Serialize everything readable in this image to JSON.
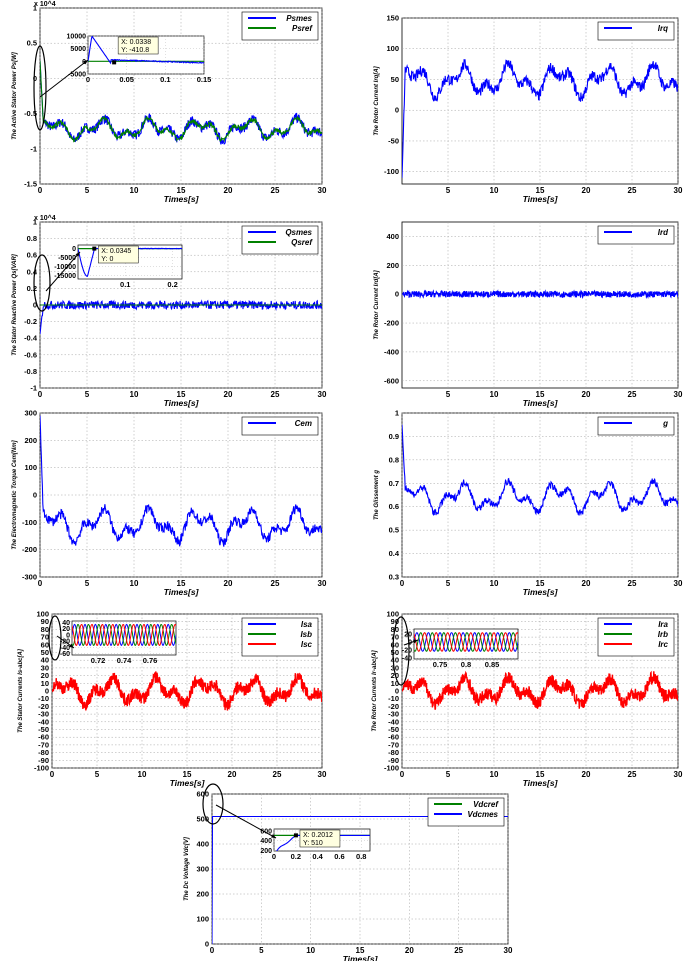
{
  "chart_data": [
    {
      "id": "p1",
      "type": "line",
      "ylabel": "The Active Stator Power Ps[W]",
      "xlabel": "Times[s]",
      "xlim": [
        0,
        30
      ],
      "ylim": [
        -1.5,
        1
      ],
      "xticks": [
        "0",
        "5",
        "10",
        "15",
        "20",
        "25",
        "30"
      ],
      "yticks": [
        "-1.5",
        "-1",
        "-0.5",
        "0",
        "0.5",
        "1"
      ],
      "exponent": "x 10^4",
      "grid": true,
      "legend_position": "top-right",
      "series": [
        {
          "name": "Psmes",
          "color": "#0000ff",
          "base": -0.72,
          "amp": 0.16,
          "period": 5.2,
          "noise": 0.07,
          "start": 0.25
        },
        {
          "name": "Psref",
          "color": "#008000",
          "base": -0.72,
          "amp": 0.16,
          "period": 5.2,
          "noise": 0.03,
          "start": 0.25
        }
      ],
      "inset": {
        "xlim": [
          0,
          0.15
        ],
        "ylim": [
          -5000,
          10000
        ],
        "xticks": [
          "0",
          "0.05",
          "0.1",
          "0.15"
        ],
        "yticks": [
          "-5000",
          "0",
          "5000",
          "10000"
        ],
        "datatip": [
          "X: 0.0338",
          "Y: -410.8"
        ],
        "tip_x": 0.0338,
        "tip_y": -410.8,
        "kind": "spike-decay"
      }
    },
    {
      "id": "p2",
      "type": "line",
      "ylabel": "The Rotor Current Irq[A]",
      "xlabel": "Times[s]",
      "xlim": [
        0,
        30
      ],
      "ylim": [
        -120,
        150
      ],
      "xticks": [
        "5",
        "10",
        "15",
        "20",
        "25",
        "30"
      ],
      "yticks": [
        "-100",
        "-50",
        "0",
        "50",
        "100",
        "150"
      ],
      "grid": true,
      "legend_position": "top-right",
      "series": [
        {
          "name": "Irq",
          "color": "#0000ff",
          "base": 48,
          "amp": 28,
          "period": 5.2,
          "noise": 9,
          "start": -110
        }
      ]
    },
    {
      "id": "p3",
      "type": "line",
      "ylabel": "The Stator Reactive Power Qs[VAR]",
      "xlabel": "Times[s]",
      "xlim": [
        0,
        30
      ],
      "ylim": [
        -1,
        1
      ],
      "xticks": [
        "0",
        "5",
        "10",
        "15",
        "20",
        "25",
        "30"
      ],
      "yticks": [
        "-1",
        "-0.8",
        "-0.6",
        "-0.4",
        "-0.2",
        "0",
        "0.2",
        "0.4",
        "0.6",
        "0.8",
        "1"
      ],
      "exponent": "x 10^4",
      "grid": true,
      "legend_position": "top-right",
      "series": [
        {
          "name": "Qsmes",
          "color": "#0000ff",
          "base": 0.0,
          "amp": 0.0,
          "period": 5,
          "noise": 0.05,
          "start": -0.35
        },
        {
          "name": "Qsref",
          "color": "#008000",
          "base": 0.0,
          "amp": 0.0,
          "period": 5,
          "noise": 0.0,
          "start": 0.0
        }
      ],
      "inset": {
        "xlim": [
          0,
          0.22
        ],
        "ylim": [
          -17000,
          2000
        ],
        "xticks": [
          "0.1",
          "0.2"
        ],
        "yticks": [
          "0",
          "-5000",
          "-10000",
          "-15000"
        ],
        "datatip": [
          "X: 0.0345",
          "Y: 0"
        ],
        "tip_x": 0.0345,
        "tip_y": 0,
        "kind": "dip-recover"
      }
    },
    {
      "id": "p4",
      "type": "line",
      "ylabel": "The Rotor Current Ird[A]",
      "xlabel": "Times[s]",
      "xlim": [
        0,
        30
      ],
      "ylim": [
        -650,
        500
      ],
      "xticks": [
        "5",
        "10",
        "15",
        "20",
        "25",
        "30"
      ],
      "yticks": [
        "-600",
        "-400",
        "-200",
        "0",
        "200",
        "400"
      ],
      "grid": true,
      "legend_position": "top-right",
      "series": [
        {
          "name": "Ird",
          "color": "#0000ff",
          "base": 0,
          "amp": 0,
          "period": 5,
          "noise": 22,
          "start": 0
        }
      ]
    },
    {
      "id": "p5",
      "type": "line",
      "ylabel": "The Electromagnetic Torque Cem[Nm]",
      "xlabel": "Times[s]",
      "xlim": [
        0,
        30
      ],
      "ylim": [
        -300,
        300
      ],
      "xticks": [
        "0",
        "5",
        "10",
        "15",
        "20",
        "25",
        "30"
      ],
      "yticks": [
        "-300",
        "-200",
        "-100",
        "0",
        "100",
        "200",
        "300"
      ],
      "grid": true,
      "legend_position": "top-right",
      "series": [
        {
          "name": "Cem",
          "color": "#0000ff",
          "base": -110,
          "amp": 65,
          "period": 5.2,
          "noise": 18,
          "start": 290
        }
      ]
    },
    {
      "id": "p6",
      "type": "line",
      "ylabel": "The Glissement g",
      "xlabel": "Times[s]",
      "xlim": [
        0,
        30
      ],
      "ylim": [
        0.3,
        1
      ],
      "xticks": [
        "0",
        "5",
        "10",
        "15",
        "20",
        "25",
        "30"
      ],
      "yticks": [
        "0.3",
        "0.4",
        "0.5",
        "0.6",
        "0.7",
        "0.8",
        "0.9",
        "1"
      ],
      "grid": true,
      "legend_position": "top-right",
      "series": [
        {
          "name": "g",
          "color": "#0000ff",
          "base": 0.64,
          "amp": 0.07,
          "period": 5.2,
          "noise": 0.015,
          "start": 0.95
        }
      ]
    },
    {
      "id": "p7",
      "type": "line",
      "ylabel": "The Stator Currents Is-abc[A]",
      "xlabel": "Times[s]",
      "xlim": [
        0,
        30
      ],
      "ylim": [
        -100,
        100
      ],
      "xticks": [
        "0",
        "5",
        "10",
        "15",
        "20",
        "25",
        "30"
      ],
      "yticks": [
        "-100",
        "-90",
        "-80",
        "-70",
        "-60",
        "-50",
        "-40",
        "-30",
        "-20",
        "-10",
        "0",
        "10",
        "20",
        "30",
        "40",
        "50",
        "60",
        "70",
        "80",
        "90",
        "100"
      ],
      "grid": true,
      "legend_position": "top-right",
      "series": [
        {
          "name": "Isa",
          "color": "#0000ff"
        },
        {
          "name": "Isb",
          "color": "#008000"
        },
        {
          "name": "Isc",
          "color": "#ff0000",
          "base": 0,
          "amp": 18,
          "period": 5.2,
          "noise": 8,
          "start": 0
        }
      ],
      "inset": {
        "xlim": [
          0.7,
          0.78
        ],
        "ylim": [
          -65,
          45
        ],
        "xticks": [
          "0.72",
          "0.74",
          "0.76"
        ],
        "yticks": [
          "40",
          "20",
          "0",
          "-20",
          "-40",
          "-60"
        ],
        "kind": "three-phase",
        "cycles": 10
      }
    },
    {
      "id": "p8",
      "type": "line",
      "ylabel": "The Rotor Currents Ir-abc[A]",
      "xlabel": "Times[s]",
      "xlim": [
        0,
        30
      ],
      "ylim": [
        -100,
        100
      ],
      "xticks": [
        "0",
        "5",
        "10",
        "15",
        "20",
        "25",
        "30"
      ],
      "yticks": [
        "-100",
        "-90",
        "-80",
        "-70",
        "-60",
        "-50",
        "-40",
        "-30",
        "-20",
        "-10",
        "0",
        "10",
        "20",
        "30",
        "40",
        "50",
        "60",
        "70",
        "80",
        "90",
        "100"
      ],
      "grid": true,
      "legend_position": "top-right",
      "series": [
        {
          "name": "Ira",
          "color": "#0000ff"
        },
        {
          "name": "Irb",
          "color": "#008000"
        },
        {
          "name": "Irc",
          "color": "#ff0000",
          "base": 0,
          "amp": 18,
          "period": 5.2,
          "noise": 8,
          "start": 0
        }
      ],
      "inset": {
        "xlim": [
          0.7,
          0.9
        ],
        "ylim": [
          -42,
          32
        ],
        "xticks": [
          "0.75",
          "0.8",
          "0.85"
        ],
        "yticks": [
          "20",
          "0",
          "-20",
          "-40"
        ],
        "kind": "three-phase",
        "cycles": 9
      }
    },
    {
      "id": "p9",
      "type": "line",
      "ylabel": "The Dc Voltage Vdc[V]",
      "xlabel": "Times[s]",
      "xlim": [
        0,
        30
      ],
      "ylim": [
        0,
        600
      ],
      "xticks": [
        "0",
        "5",
        "10",
        "15",
        "20",
        "25",
        "30"
      ],
      "yticks": [
        "0",
        "100",
        "200",
        "300",
        "400",
        "500",
        "600"
      ],
      "grid": true,
      "legend_position": "top-right",
      "series": [
        {
          "name": "Vdcref",
          "color": "#008000",
          "base": 510,
          "amp": 0,
          "period": 5,
          "noise": 0,
          "start": 510
        },
        {
          "name": "Vdcmes",
          "color": "#0000ff",
          "base": 510,
          "amp": 0,
          "period": 5,
          "noise": 0.5,
          "start": 0
        }
      ],
      "inset": {
        "xlim": [
          0,
          0.88
        ],
        "ylim": [
          190,
          640
        ],
        "xticks": [
          "0",
          "0.2",
          "0.4",
          "0.6",
          "0.8"
        ],
        "yticks": [
          "600",
          "400",
          "200"
        ],
        "datatip": [
          "X: 0.2012",
          "Y: 510"
        ],
        "tip_x": 0.2012,
        "tip_y": 510,
        "kind": "rise"
      }
    }
  ]
}
